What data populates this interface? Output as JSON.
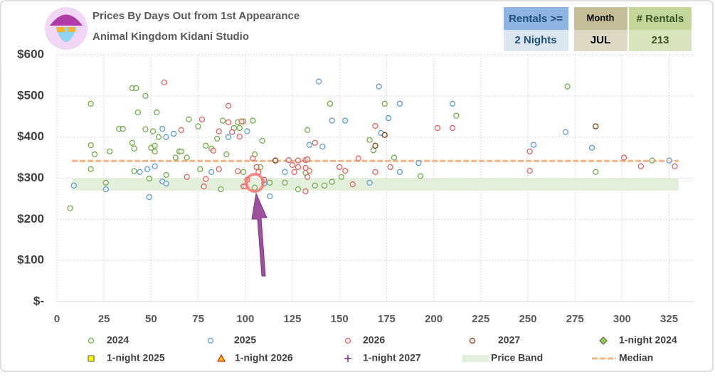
{
  "chart_data": {
    "type": "scatter",
    "title": "Prices By Days Out from 1st Appearance",
    "subtitle": "Animal Kingdom Kidani Studio",
    "filters": [
      {
        "label": "Rentals >=",
        "value": "2 Nights"
      },
      {
        "label": "Month",
        "value": "JUL"
      },
      {
        "label": "# Rentals",
        "value": "213"
      }
    ],
    "xlim": [
      0,
      338
    ],
    "xticks": [
      0,
      25,
      50,
      75,
      100,
      125,
      150,
      175,
      200,
      225,
      250,
      275,
      300,
      325
    ],
    "ylim": [
      0,
      600
    ],
    "yticks": [
      {
        "value": 0,
        "label": "$-"
      },
      {
        "value": 100,
        "label": "$100"
      },
      {
        "value": 200,
        "label": "$200"
      },
      {
        "value": 300,
        "label": "$300"
      },
      {
        "value": 400,
        "label": "$400"
      },
      {
        "value": 500,
        "label": "$500"
      },
      {
        "value": 600,
        "label": "$600"
      }
    ],
    "grid": true,
    "series": [
      {
        "name": "2024",
        "color": "#70ad47",
        "marker": "circle",
        "x": [
          7,
          18,
          18,
          18,
          20,
          26,
          28,
          33,
          35,
          40,
          42,
          40,
          41,
          41,
          43,
          47,
          47,
          49,
          50,
          51,
          52,
          52,
          53,
          54,
          58,
          63,
          65,
          66,
          69,
          70,
          75,
          76,
          79,
          82,
          85,
          87,
          88,
          90,
          94,
          96,
          97,
          99,
          99,
          104,
          105,
          105,
          106,
          108,
          109,
          113,
          121,
          128,
          132,
          133,
          137,
          142,
          145,
          146,
          151,
          166,
          168,
          174,
          179,
          193,
          212,
          271,
          286,
          316
        ],
        "values": [
          227,
          380,
          481,
          322,
          358,
          289,
          365,
          420,
          420,
          519,
          519,
          386,
          372,
          317,
          460,
          500,
          419,
          299,
          374,
          414,
          365,
          379,
          460,
          400,
          308,
          350,
          365,
          365,
          350,
          443,
          426,
          322,
          379,
          372,
          396,
          273,
          440,
          358,
          422,
          436,
          422,
          438,
          315,
          440,
          358,
          277,
          327,
          327,
          391,
          289,
          289,
          273,
          313,
          417,
          282,
          282,
          481,
          291,
          303,
          393,
          368,
          481,
          350,
          305,
          452,
          523,
          315,
          343
        ]
      },
      {
        "name": "2025",
        "color": "#5b9bd5",
        "marker": "circle",
        "x": [
          9,
          26,
          44,
          48,
          49,
          52,
          56,
          56,
          58,
          58,
          62,
          82,
          91,
          101,
          110,
          113,
          121,
          134,
          139,
          141,
          146,
          153,
          166,
          171,
          172,
          176,
          182,
          182,
          192,
          210,
          253,
          270,
          284,
          325
        ],
        "values": [
          282,
          273,
          315,
          322,
          254,
          329,
          420,
          292,
          287,
          400,
          408,
          315,
          400,
          414,
          287,
          256,
          315,
          381,
          535,
          377,
          440,
          440,
          289,
          523,
          410,
          446,
          481,
          315,
          337,
          481,
          381,
          412,
          374,
          343
        ]
      },
      {
        "name": "2026",
        "color": "#e06060",
        "marker": "circle",
        "x": [
          57,
          66,
          69,
          77,
          78,
          79,
          83,
          86,
          86,
          91,
          91,
          93,
          97,
          96,
          98,
          99,
          100,
          101,
          104,
          106,
          107,
          110,
          116,
          123,
          125,
          126,
          128,
          128,
          132,
          132,
          132,
          133,
          133,
          134,
          137,
          150,
          153,
          157,
          160,
          169,
          169,
          177,
          202,
          210,
          251,
          251,
          301,
          310,
          328
        ],
        "values": [
          533,
          417,
          303,
          443,
          280,
          298,
          367,
          414,
          322,
          476,
          436,
          412,
          401,
          317,
          438,
          280,
          280,
          296,
          348,
          327,
          315,
          296,
          343,
          344,
          332,
          315,
          327,
          343,
          344,
          268,
          325,
          303,
          346,
          318,
          386,
          327,
          318,
          285,
          348,
          315,
          427,
          327,
          422,
          422,
          365,
          318,
          350,
          329,
          329
        ]
      },
      {
        "name": "2027",
        "color": "#843c0c",
        "marker": "circle",
        "x": [
          116,
          169,
          174,
          286
        ],
        "values": [
          343,
          379,
          405,
          426
        ]
      },
      {
        "name": "1-night 2024",
        "color": "#92d050",
        "marker": "diamond",
        "x": [],
        "values": []
      },
      {
        "name": "1-night 2025",
        "color": "#ffff00",
        "marker": "square",
        "x": [],
        "values": []
      },
      {
        "name": "1-night 2026",
        "color": "#ffc000",
        "marker": "triangle",
        "x": [],
        "values": []
      },
      {
        "name": "1-night 2027",
        "color": "#7030a0",
        "marker": "plus",
        "x": [],
        "values": []
      }
    ],
    "price_band": {
      "name": "Price Band",
      "color": "#e2efda",
      "range": [
        270,
        300
      ],
      "xrange": [
        8,
        330
      ]
    },
    "median": {
      "name": "Median",
      "color": "#f4b183",
      "value": 342,
      "xrange": [
        8,
        330
      ]
    }
  }
}
